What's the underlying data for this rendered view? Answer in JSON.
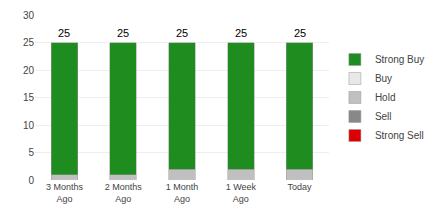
{
  "chart_data": {
    "type": "bar",
    "stacked": true,
    "categories": [
      "3 Months\nAgo",
      "2 Months\nAgo",
      "1 Month\nAgo",
      "1 Week\nAgo",
      "Today"
    ],
    "series": [
      {
        "name": "Strong Sell",
        "color": "#dd0000",
        "values": [
          0,
          0,
          0,
          0,
          0
        ]
      },
      {
        "name": "Sell",
        "color": "#888888",
        "values": [
          0,
          0,
          0,
          0,
          0
        ]
      },
      {
        "name": "Hold",
        "color": "#c0c0c0",
        "values": [
          1,
          1,
          2,
          2,
          2
        ]
      },
      {
        "name": "Buy",
        "color": "#e8e8e8",
        "values": [
          0,
          0,
          0,
          0,
          0
        ]
      },
      {
        "name": "Strong Buy",
        "color": "#1f8c1f",
        "values": [
          24,
          24,
          23,
          23,
          23
        ]
      }
    ],
    "totals": [
      25,
      25,
      25,
      25,
      25
    ],
    "ylim": [
      0,
      30
    ],
    "yticks": [
      0,
      5,
      10,
      15,
      20,
      25,
      30
    ],
    "grid": true,
    "legend": "right"
  }
}
